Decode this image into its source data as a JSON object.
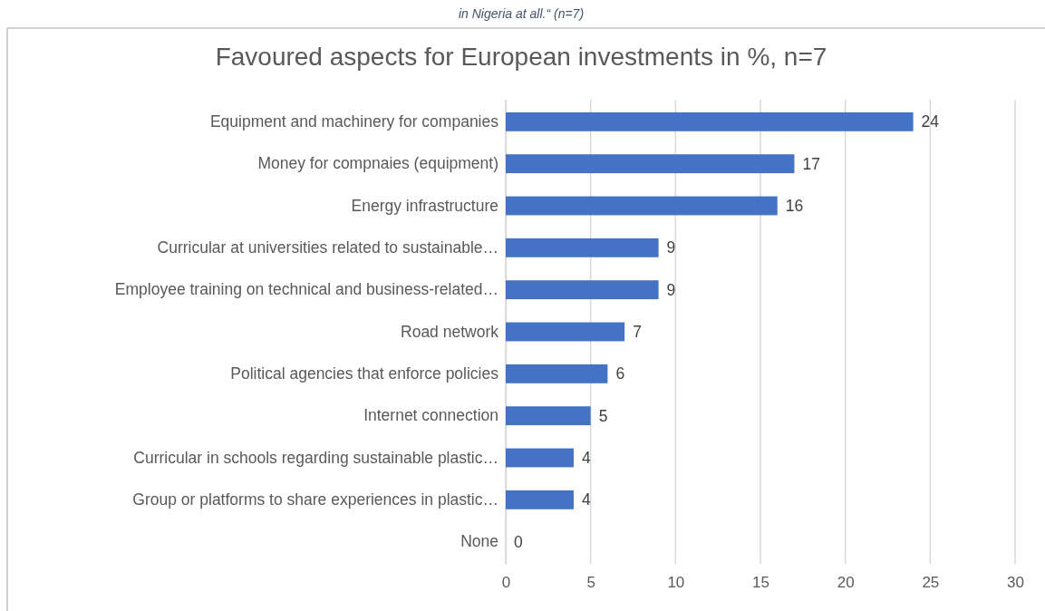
{
  "chart_data": {
    "type": "bar",
    "orientation": "horizontal",
    "title": "Favoured aspects for European investments in %, n=7",
    "annotations": [
      "in Nigeria at all.“ (n=7)"
    ],
    "categories": [
      "Equipment and machinery for companies",
      "Money for compnaies (equipment)",
      "Energy infrastructure",
      "Curricular at universities related to sustainable…",
      "Employee training on technical and business-related…",
      "Road network",
      "Political agencies that enforce policies",
      "Internet connection",
      "Curricular in schools regarding sustainable plastic…",
      "Group or platforms to share experiences in plastic…",
      "None"
    ],
    "values": [
      24,
      17,
      16,
      9,
      9,
      7,
      6,
      5,
      4,
      4,
      0
    ],
    "color": "#4472c4",
    "xlim": [
      0,
      30
    ],
    "xticks": [
      0,
      5,
      10,
      15,
      20,
      25,
      30
    ],
    "grid": "x",
    "data_labels": true
  }
}
